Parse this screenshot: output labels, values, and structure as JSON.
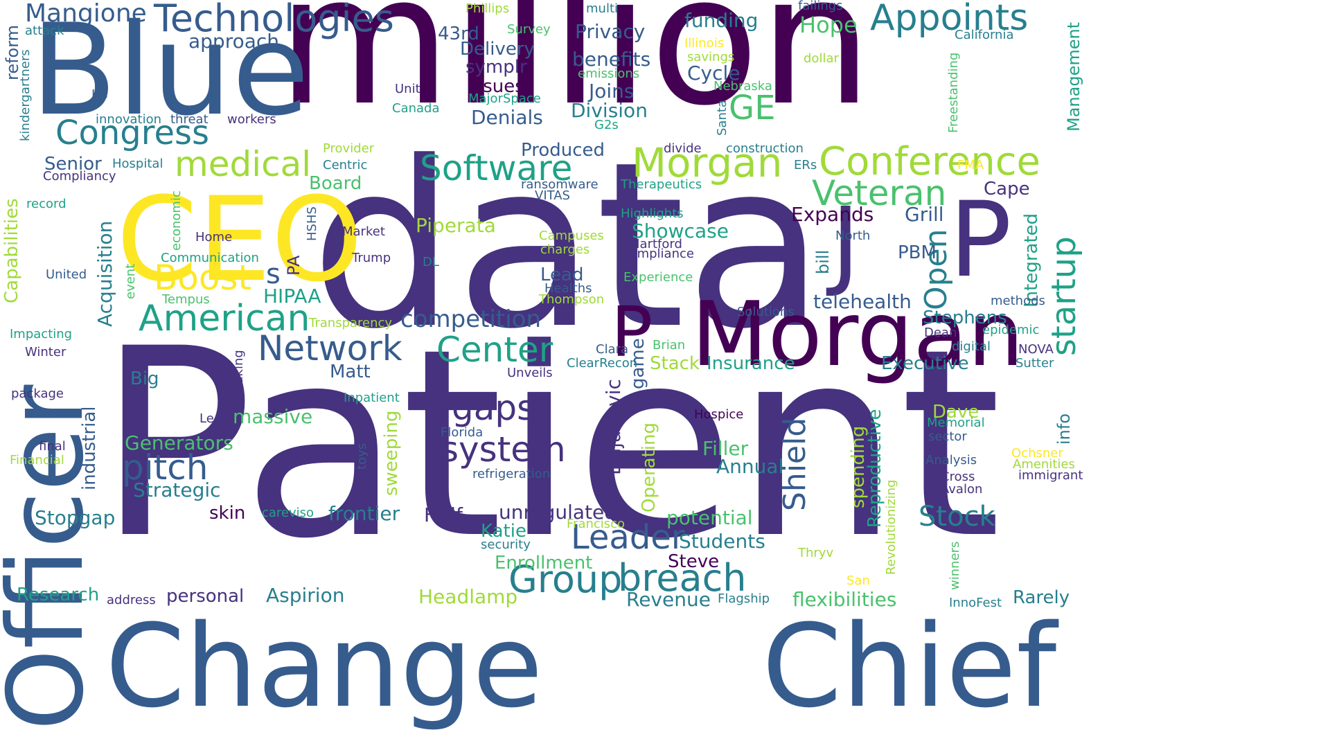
{
  "words": {
    "million": "million",
    "data": "data",
    "patient": "Patient",
    "blue": "Blue",
    "officer": "Officer",
    "change": "Change",
    "chief": "Chief",
    "ceo": "CEO",
    "morgan_big": "Morgan",
    "p_big": "P",
    "j_big": "J",
    "p_mid": "P",
    "technologies": "Technologies",
    "mangione": "Mangione",
    "appoints": "Appoints",
    "congress": "Congress",
    "medical": "medical",
    "software": "Software",
    "morgan_mid": "Morgan",
    "conference": "Conference",
    "veteran": "Veteran",
    "ge": "GE",
    "boost": "Boost",
    "american": "American",
    "network": "Network",
    "center": "Center",
    "gaps": "gaps",
    "system": "system",
    "pitch": "pitch",
    "group": "Group",
    "breach": "breach",
    "leader": "Leader",
    "shield": "Shield",
    "open": "Open",
    "startup": "startup",
    "stock": "Stock",
    "competition": "competition",
    "telehealth": "telehealth",
    "piperata": "Piperata",
    "showcase": "Showcase",
    "expands": "Expands",
    "grill": "Grill",
    "cape": "Cape",
    "pbm": "PBM",
    "stephens": "Stephens",
    "s": "s",
    "hipaa": "HIPAA",
    "acquisition": "Acquisition",
    "capabilities": "Capabilities",
    "reform": "reform",
    "kindergartners": "kindergartners",
    "management": "Management",
    "freestanding": "Freestanding",
    "integrated": "Integrated",
    "research": "Research",
    "address": "address",
    "personal": "personal",
    "aspirion": "Aspirion",
    "headlamp": "Headlamp",
    "revenue": "Revenue",
    "flagship": "Flagship",
    "flexibilities": "flexibilities",
    "innofest": "InnoFest",
    "rarely": "Rarely",
    "san": "San",
    "winners": "winners",
    "revolutionizing": "Revolutionizing",
    "thryv": "Thryv",
    "students": "Students",
    "steve": "Steve",
    "enrollment": "Enrollment",
    "security": "security",
    "katie": "Katie",
    "francisco": "Francisco",
    "potential": "potential",
    "unregulated": "unregulated",
    "half": "Half",
    "frontier": "frontier",
    "careviso": "careviso",
    "skin": "skin",
    "stopgap": "Stopgap",
    "strategic": "Strategic",
    "generators": "Generators",
    "industrial": "industrial",
    "final": "final",
    "financial": "Financial",
    "package": "package",
    "winter": "Winter",
    "impacting": "Impacting",
    "united": "United",
    "record": "record",
    "compliancy": "Compliancy",
    "senior": "Senior",
    "hospital": "Hospital",
    "home": "Home",
    "communication": "Communication",
    "economic": "economic",
    "event": "event",
    "tempus": "Tempus",
    "trump": "Trump",
    "market": "Market",
    "hshs": "HSHS",
    "pa": "PA",
    "dl": "DL",
    "transparency": "Transparency",
    "big": "Big",
    "matt": "Matt",
    "breaking": "breaking",
    "lee": "Lee",
    "massive": "massive",
    "inpatient": "Inpatient",
    "florida": "Florida",
    "toys": "toys",
    "sweeping": "sweeping",
    "refrigeration": "refrigeration",
    "unveils": "Unveils",
    "dujanovic": "Dujanovic",
    "game": "game",
    "operating": "Operating",
    "filler": "Filler",
    "annual": "Annual",
    "hospice": "Hospice",
    "clearecon": "ClearRecon",
    "clara": "Clara",
    "brian": "Brian",
    "stack": "Stack",
    "insurance": "Insurance",
    "executive": "Executive",
    "spending": "spending",
    "reproductive": "Reproductive",
    "dave": "Dave",
    "memorial": "Memorial",
    "sector": "sector",
    "analysis": "Analysis",
    "cross": "Cross",
    "avalon": "Avalon",
    "ochsner": "Ochsner",
    "amenities": "Amenities",
    "immigrant": "immigrant",
    "info": "info",
    "nova": "NOVA",
    "sutter": "Sutter",
    "digital": "digital",
    "dean": "Dean",
    "epidemic": "epidemic",
    "methods": "methods",
    "solutions": "Solutions",
    "bill": "bill",
    "north": "North",
    "compliance": "Compliance",
    "hartford": "Hartford",
    "highlights": "Highlights",
    "experience": "Experience",
    "campuses": "Campuses",
    "charges": "charges",
    "lead": "Lead",
    "healths": "Healths",
    "thompson": "Thompson",
    "produced": "Produced",
    "ransomware": "ransomware",
    "vitas": "VITAS",
    "therapeutics": "Therapeutics",
    "board": "Board",
    "centric": "Centric",
    "provider": "Provider",
    "divide": "divide",
    "construction": "construction",
    "ers": "ERs",
    "fma": "FMA",
    "approach": "approach",
    "attack": "attack",
    "lg": "LG",
    "innovation": "innovation",
    "threat": "threat",
    "workers": "workers",
    "unit": "Unit",
    "canada": "Canada",
    "survey": "Survey",
    "phillips": "Phillips",
    "multi": "multi",
    "43rd": "43rd",
    "delivery": "Delivery",
    "symplr": "symplr",
    "issues": "Issues",
    "majorspace": "MajorSpace",
    "denials": "Denials",
    "privacy": "Privacy",
    "benefits": "benefits",
    "emissions": "emissions",
    "joins": "Joins",
    "division": "Division",
    "g2s": "G2s",
    "cycle": "Cycle",
    "funding": "funding",
    "hope": "Hope",
    "illinois": "Illinois",
    "savings": "savings",
    "nebraska": "Nebraska",
    "santa": "Santa",
    "failings": "failings",
    "california": "California",
    "dollar": "dollar"
  }
}
